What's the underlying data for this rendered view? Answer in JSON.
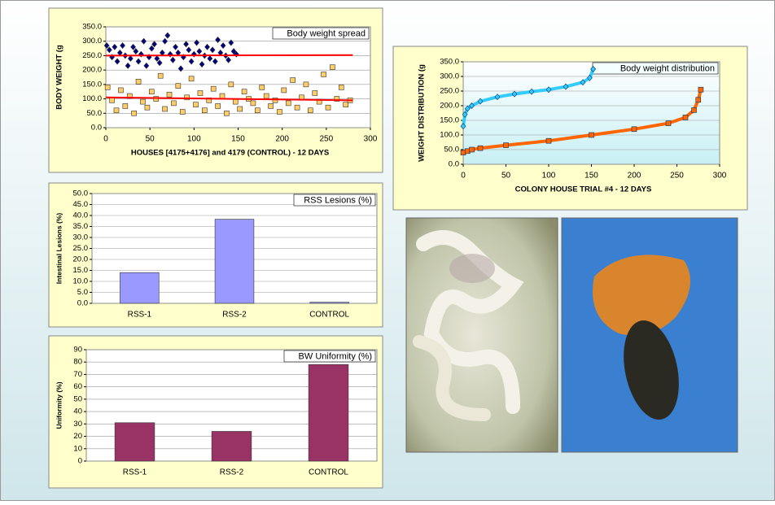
{
  "chart_data": [
    {
      "type": "scatter",
      "title": "Body weight spread",
      "ylabel": "BODY WEIGHT (g",
      "xlabel": "HOUSES [4175+4176] and 4179 (CONTROL) - 12 DAYS",
      "xlim": [
        0,
        300
      ],
      "xticks": [
        0,
        50,
        100,
        150,
        200,
        250,
        300
      ],
      "ylim": [
        0,
        350
      ],
      "yticks": [
        {
          "value": 0,
          "label": "0.0"
        },
        {
          "value": 50,
          "label": "50.0"
        },
        {
          "value": 100,
          "label": "100.0"
        },
        {
          "value": 150,
          "label": "150.0"
        },
        {
          "value": 200,
          "label": "200.0"
        },
        {
          "value": 250,
          "label": "250.0"
        },
        {
          "value": 300,
          "label": "300.0"
        },
        {
          "value": 350,
          "label": "350.0"
        }
      ],
      "grid": true,
      "series": [
        {
          "color": "#000080",
          "marker": "diamond",
          "x": [
            1,
            4,
            7,
            10,
            13,
            16,
            19,
            22,
            25,
            28,
            31,
            34,
            37,
            40,
            43,
            46,
            49,
            52,
            55,
            58,
            61,
            64,
            67,
            70,
            73,
            76,
            79,
            82,
            85,
            88,
            91,
            94,
            97,
            100,
            103,
            106,
            109,
            112,
            115,
            118,
            121,
            124,
            127,
            130,
            133,
            136,
            139,
            142,
            145,
            148
          ],
          "values": [
            285,
            270,
            245,
            280,
            230,
            260,
            285,
            250,
            215,
            240,
            280,
            265,
            230,
            255,
            300,
            215,
            245,
            275,
            290,
            240,
            225,
            260,
            300,
            320,
            255,
            235,
            280,
            260,
            205,
            245,
            290,
            270,
            230,
            255,
            295,
            265,
            220,
            250,
            280,
            240,
            270,
            230,
            305,
            260,
            285,
            250,
            235,
            295,
            265,
            255
          ]
        },
        {
          "color": "#ffcc66",
          "marker": "square",
          "x": [
            2,
            7,
            12,
            17,
            22,
            27,
            32,
            37,
            42,
            47,
            52,
            57,
            62,
            67,
            72,
            77,
            82,
            87,
            92,
            97,
            102,
            107,
            112,
            117,
            122,
            127,
            132,
            137,
            142,
            147,
            152,
            157,
            162,
            167,
            172,
            177,
            182,
            187,
            192,
            197,
            202,
            207,
            212,
            217,
            222,
            227,
            232,
            237,
            242,
            247,
            252,
            257,
            262,
            267,
            272,
            277
          ],
          "values": [
            140,
            95,
            60,
            130,
            75,
            110,
            50,
            160,
            90,
            70,
            125,
            100,
            180,
            65,
            115,
            85,
            145,
            55,
            105,
            170,
            80,
            120,
            60,
            95,
            135,
            75,
            110,
            50,
            150,
            90,
            65,
            125,
            100,
            85,
            60,
            140,
            110,
            75,
            95,
            55,
            130,
            85,
            165,
            70,
            105,
            150,
            60,
            120,
            90,
            185,
            70,
            210,
            100,
            140,
            80,
            95
          ]
        },
        {
          "color": "#ff0000",
          "marker": "none",
          "x": [
            0,
            280
          ],
          "values": [
            250,
            252
          ]
        },
        {
          "color": "#ff0000",
          "marker": "none",
          "x": [
            0,
            280
          ],
          "values": [
            105,
            95
          ]
        }
      ]
    },
    {
      "type": "line",
      "title": "Body weight distribution",
      "ylabel": "WEIGHT DISTRIBUTION (g",
      "xlabel": "COLONY HOUSE TRIAL #4 - 12 DAYS",
      "xlim": [
        0,
        300
      ],
      "xticks": [
        0,
        50,
        100,
        150,
        200,
        250,
        300
      ],
      "ylim": [
        0,
        350
      ],
      "yticks": [
        {
          "value": 0,
          "label": "0.0"
        },
        {
          "value": 50,
          "label": "50.0"
        },
        {
          "value": 100,
          "label": "100.0"
        },
        {
          "value": 150,
          "label": "150.0"
        },
        {
          "value": 200,
          "label": "200.0"
        },
        {
          "value": 250,
          "label": "250.0"
        },
        {
          "value": 300,
          "label": "300.0"
        },
        {
          "value": 350,
          "label": "350.0"
        }
      ],
      "grid": true,
      "series": [
        {
          "color": "#33ccff",
          "marker": "diamond",
          "x": [
            0,
            2,
            5,
            10,
            20,
            40,
            60,
            80,
            100,
            120,
            140,
            148,
            152
          ],
          "values": [
            130,
            170,
            190,
            200,
            215,
            230,
            240,
            248,
            255,
            265,
            280,
            295,
            325
          ]
        },
        {
          "color": "#ff6600",
          "marker": "square",
          "x": [
            0,
            5,
            10,
            20,
            50,
            100,
            150,
            200,
            240,
            260,
            270,
            275,
            278
          ],
          "values": [
            40,
            45,
            50,
            55,
            65,
            80,
            100,
            120,
            140,
            160,
            185,
            220,
            255
          ]
        }
      ]
    },
    {
      "type": "bar",
      "title": "RSS Lesions (%)",
      "ylabel": "Intestinal Lesions (%)",
      "color": "#9999ff",
      "categories": [
        "RSS-1",
        "RSS-2",
        "CONTROL"
      ],
      "values": [
        14,
        38.3,
        0.5
      ],
      "ylim": [
        0,
        50
      ],
      "yticks": [
        {
          "value": 0,
          "label": "0.0"
        },
        {
          "value": 5,
          "label": "5.0"
        },
        {
          "value": 10,
          "label": "10.0"
        },
        {
          "value": 15,
          "label": "15.0"
        },
        {
          "value": 20,
          "label": "20.0"
        },
        {
          "value": 25,
          "label": "25.0"
        },
        {
          "value": 30,
          "label": "30.0"
        },
        {
          "value": 35,
          "label": "35.0"
        },
        {
          "value": 40,
          "label": "40.0"
        },
        {
          "value": 45,
          "label": "45.0"
        },
        {
          "value": 50,
          "label": "50.0"
        }
      ],
      "grid": true
    },
    {
      "type": "bar",
      "title": "BW Uniformity (%)",
      "ylabel": "Uniformity (%)",
      "color": "#993366",
      "categories": [
        "RSS-1",
        "RSS-2",
        "CONTROL"
      ],
      "values": [
        31,
        24,
        78
      ],
      "ylim": [
        0,
        90
      ],
      "yticks": [
        0,
        10,
        20,
        30,
        40,
        50,
        60,
        70,
        80,
        90
      ],
      "grid": true
    }
  ]
}
